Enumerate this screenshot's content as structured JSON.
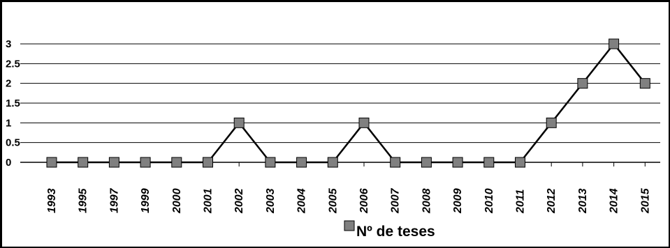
{
  "chart_data": {
    "type": "line",
    "categories": [
      "1993",
      "1995",
      "1997",
      "1999",
      "2000",
      "2001",
      "2002",
      "2003",
      "2004",
      "2005",
      "2006",
      "2007",
      "2008",
      "2009",
      "2010",
      "2011",
      "2012",
      "2013",
      "2014",
      "2015"
    ],
    "series": [
      {
        "name": "Nº de teses",
        "values": [
          0,
          0,
          0,
          0,
          0,
          0,
          1,
          0,
          0,
          0,
          1,
          0,
          0,
          0,
          0,
          0,
          1,
          2,
          3,
          2
        ],
        "color": "#000000",
        "marker_color": "#808080"
      }
    ],
    "y_ticks": [
      "0",
      "0.5",
      "1",
      "1.5",
      "2",
      "2.5",
      "3"
    ],
    "ylim": [
      0,
      3
    ],
    "grid": true,
    "legend_position": "bottom-center"
  }
}
